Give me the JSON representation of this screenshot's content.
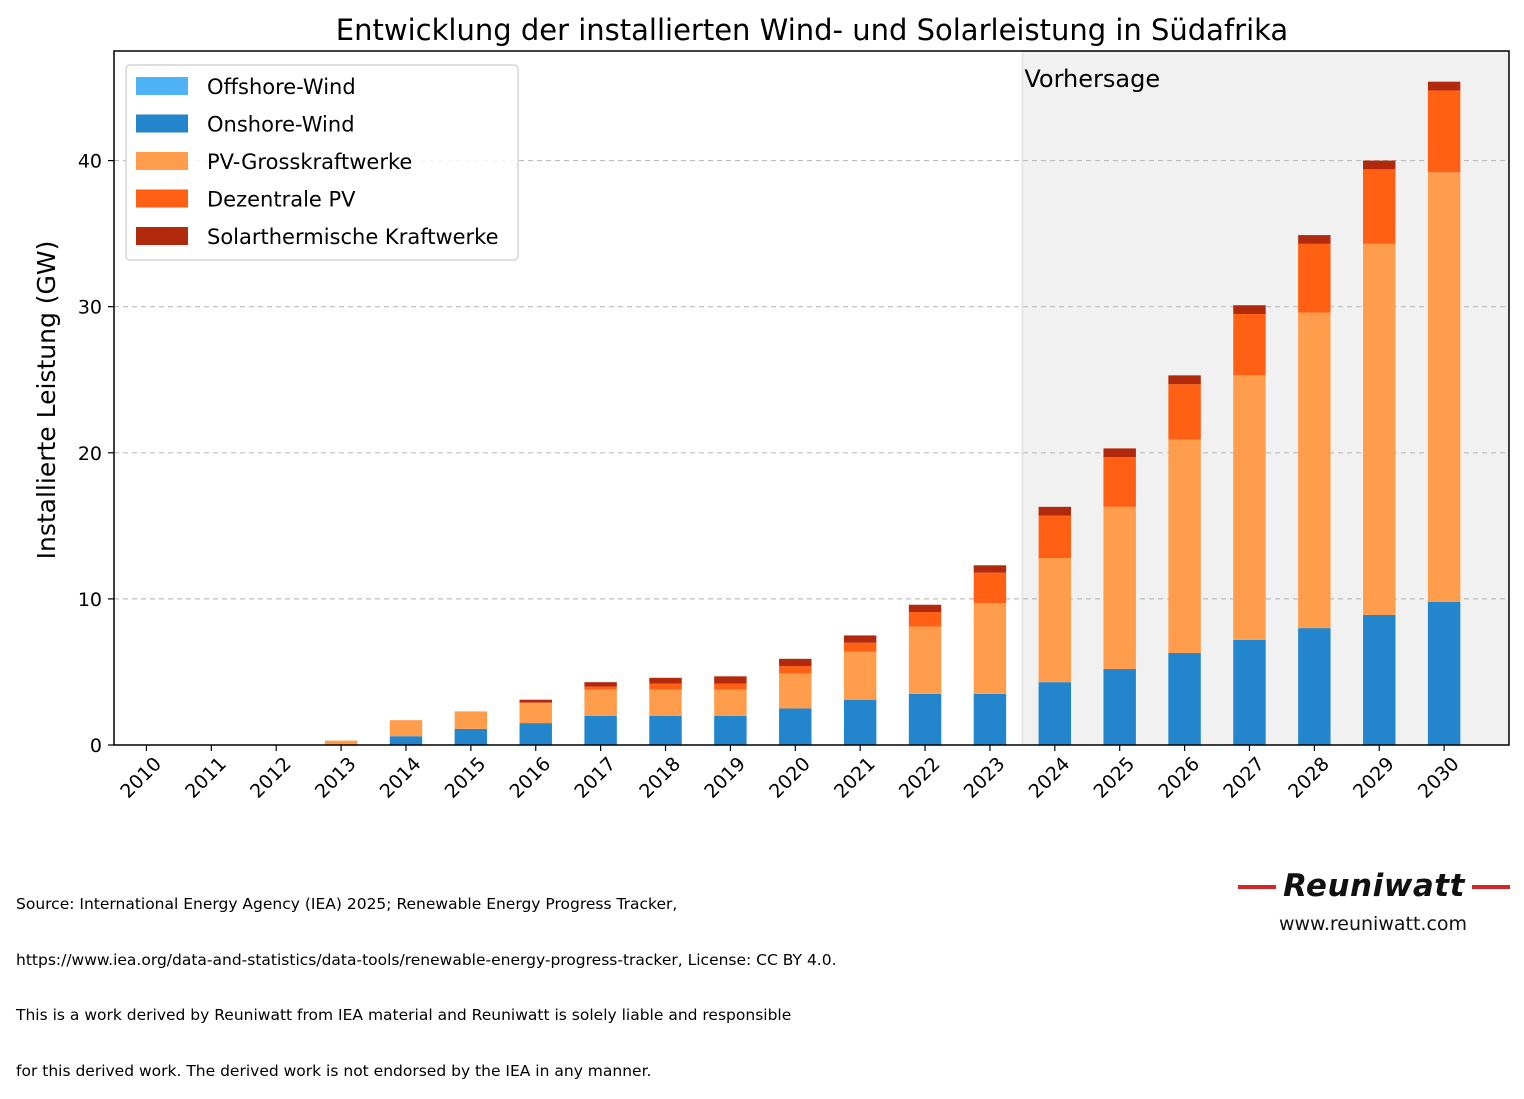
{
  "chart_data": {
    "type": "bar",
    "stacked": true,
    "title": "Entwicklung der installierten Wind- und Solarleistung in Südafrika",
    "xlabel": "",
    "ylabel": "Installierte Leistung (GW)",
    "ylim": [
      0,
      47.5
    ],
    "yticks": [
      0,
      10,
      20,
      30,
      40
    ],
    "grid": "horizontal dashed",
    "legend_position": "top-left",
    "forecast_label": "Vorhersage",
    "forecast_start": "2024",
    "categories": [
      "2010",
      "2011",
      "2012",
      "2013",
      "2014",
      "2015",
      "2016",
      "2017",
      "2018",
      "2019",
      "2020",
      "2021",
      "2022",
      "2023",
      "2024",
      "2025",
      "2026",
      "2027",
      "2028",
      "2029",
      "2030"
    ],
    "series": [
      {
        "name": "Offshore-Wind",
        "color": "#4db3f5",
        "values": [
          0,
          0,
          0,
          0,
          0,
          0,
          0,
          0,
          0,
          0,
          0,
          0,
          0,
          0,
          0,
          0,
          0,
          0,
          0,
          0,
          0
        ]
      },
      {
        "name": "Onshore-Wind",
        "color": "#2386cc",
        "values": [
          0,
          0,
          0,
          0,
          0.6,
          1.1,
          1.5,
          2.0,
          2.0,
          2.0,
          2.5,
          3.1,
          3.5,
          3.5,
          4.3,
          5.2,
          6.3,
          7.2,
          8.0,
          8.9,
          9.8
        ]
      },
      {
        "name": "PV-Grosskraftwerke",
        "color": "#ff9d4d",
        "values": [
          0,
          0,
          0,
          0.3,
          1.1,
          1.2,
          1.4,
          1.8,
          1.8,
          1.8,
          2.4,
          3.3,
          4.6,
          6.2,
          8.5,
          11.1,
          14.6,
          18.1,
          21.6,
          25.4,
          29.4
        ]
      },
      {
        "name": "Dezentrale PV",
        "color": "#ff6014",
        "values": [
          0,
          0,
          0,
          0,
          0,
          0,
          0,
          0.2,
          0.4,
          0.4,
          0.5,
          0.6,
          1.0,
          2.1,
          2.9,
          3.4,
          3.8,
          4.2,
          4.7,
          5.1,
          5.6
        ]
      },
      {
        "name": "Solarthermische Kraftwerke",
        "color": "#b22a0e",
        "values": [
          0,
          0,
          0,
          0,
          0,
          0,
          0.2,
          0.3,
          0.4,
          0.5,
          0.5,
          0.5,
          0.5,
          0.5,
          0.6,
          0.6,
          0.6,
          0.6,
          0.6,
          0.6,
          0.6
        ]
      }
    ]
  },
  "footer": {
    "source_lines": [
      "Source: International Energy Agency (IEA) 2025; Renewable Energy Progress Tracker,",
      "https://www.iea.org/data-and-statistics/data-tools/renewable-energy-progress-tracker, License: CC BY 4.0.",
      "This is a work derived by Reuniwatt from IEA material and Reuniwatt is solely liable and responsible",
      "for this derived work. The derived work is not endorsed by the IEA in any manner."
    ],
    "logo_text": "Reuniwatt",
    "website": "www.reuniwatt.com"
  },
  "colors": {
    "forecast_shade": "#f1f1f1",
    "grid": "#bdbdbd",
    "logo_accent": "#d62728"
  }
}
